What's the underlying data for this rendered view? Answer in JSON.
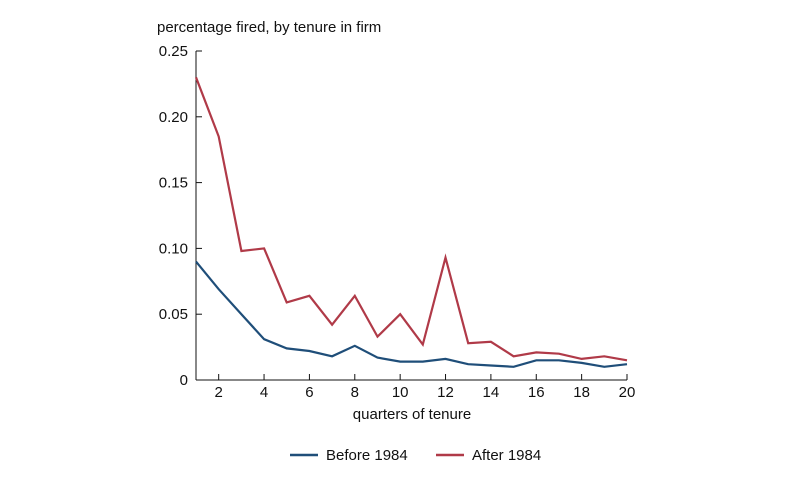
{
  "chart_data": {
    "type": "line",
    "title": "",
    "ylabel": "percentage fired, by tenure in firm",
    "xlabel": "quarters of tenure",
    "xlim": [
      1,
      20
    ],
    "ylim": [
      0,
      0.25
    ],
    "x_ticks": [
      2,
      4,
      6,
      8,
      10,
      12,
      14,
      16,
      18,
      20
    ],
    "x_tick_labels": [
      "2",
      "4",
      "6",
      "8",
      "10",
      "12",
      "14",
      "16",
      "18",
      "20"
    ],
    "y_ticks": [
      0,
      0.05,
      0.1,
      0.15,
      0.2,
      0.25
    ],
    "y_tick_labels": [
      "0",
      "0.05",
      "0.10",
      "0.15",
      "0.20",
      "0.25"
    ],
    "grid": false,
    "legend_position": "bottom",
    "x": [
      1,
      2,
      3,
      4,
      5,
      6,
      7,
      8,
      9,
      10,
      11,
      12,
      13,
      14,
      15,
      16,
      17,
      18,
      19,
      20
    ],
    "series": [
      {
        "name": "Before 1984",
        "color": "#1f4e79",
        "values": [
          0.09,
          0.069,
          0.05,
          0.031,
          0.024,
          0.022,
          0.018,
          0.026,
          0.017,
          0.014,
          0.014,
          0.016,
          0.012,
          0.011,
          0.01,
          0.015,
          0.015,
          0.013,
          0.01,
          0.012
        ]
      },
      {
        "name": "After 1984",
        "color": "#b03a48",
        "values": [
          0.23,
          0.185,
          0.098,
          0.1,
          0.059,
          0.064,
          0.042,
          0.064,
          0.033,
          0.05,
          0.027,
          0.093,
          0.028,
          0.029,
          0.018,
          0.021,
          0.02,
          0.016,
          0.018,
          0.015
        ]
      }
    ]
  }
}
